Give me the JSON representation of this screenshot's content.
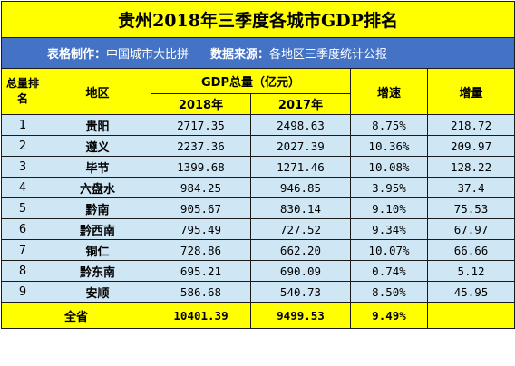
{
  "title": "贵州2018年三季度各城市GDP排名",
  "meta": {
    "maker_label": "表格制作：",
    "maker_value": "中国城市大比拼",
    "source_label": "数据来源：",
    "source_value": "各地区三季度统计公报"
  },
  "headers": {
    "rank": "总量排名",
    "region": "地区",
    "gdp_total": "GDP总量（亿元）",
    "year_2018": "2018年",
    "year_2017": "2017年",
    "growth": "增速",
    "increase": "增量"
  },
  "rows": [
    {
      "rank": "1",
      "region": "贵阳",
      "gdp2018": "2717.35",
      "gdp2017": "2498.63",
      "growth": "8.75%",
      "increase": "218.72"
    },
    {
      "rank": "2",
      "region": "遵义",
      "gdp2018": "2237.36",
      "gdp2017": "2027.39",
      "growth": "10.36%",
      "increase": "209.97"
    },
    {
      "rank": "3",
      "region": "毕节",
      "gdp2018": "1399.68",
      "gdp2017": "1271.46",
      "growth": "10.08%",
      "increase": "128.22"
    },
    {
      "rank": "4",
      "region": "六盘水",
      "gdp2018": "984.25",
      "gdp2017": "946.85",
      "growth": "3.95%",
      "increase": "37.4"
    },
    {
      "rank": "5",
      "region": "黔南",
      "gdp2018": "905.67",
      "gdp2017": "830.14",
      "growth": "9.10%",
      "increase": "75.53"
    },
    {
      "rank": "6",
      "region": "黔西南",
      "gdp2018": "795.49",
      "gdp2017": "727.52",
      "growth": "9.34%",
      "increase": "67.97"
    },
    {
      "rank": "7",
      "region": "铜仁",
      "gdp2018": "728.86",
      "gdp2017": "662.20",
      "growth": "10.07%",
      "increase": "66.66"
    },
    {
      "rank": "8",
      "region": "黔东南",
      "gdp2018": "695.21",
      "gdp2017": "690.09",
      "growth": "0.74%",
      "increase": "5.12"
    },
    {
      "rank": "9",
      "region": "安顺",
      "gdp2018": "586.68",
      "gdp2017": "540.73",
      "growth": "8.50%",
      "increase": "45.95"
    }
  ],
  "total": {
    "label": "全省",
    "gdp2018": "10401.39",
    "gdp2017": "9499.53",
    "growth": "9.49%",
    "increase": ""
  },
  "colors": {
    "header_yellow": "#ffff00",
    "meta_blue": "#4472c4",
    "row_blue": "#cfe7f5"
  }
}
